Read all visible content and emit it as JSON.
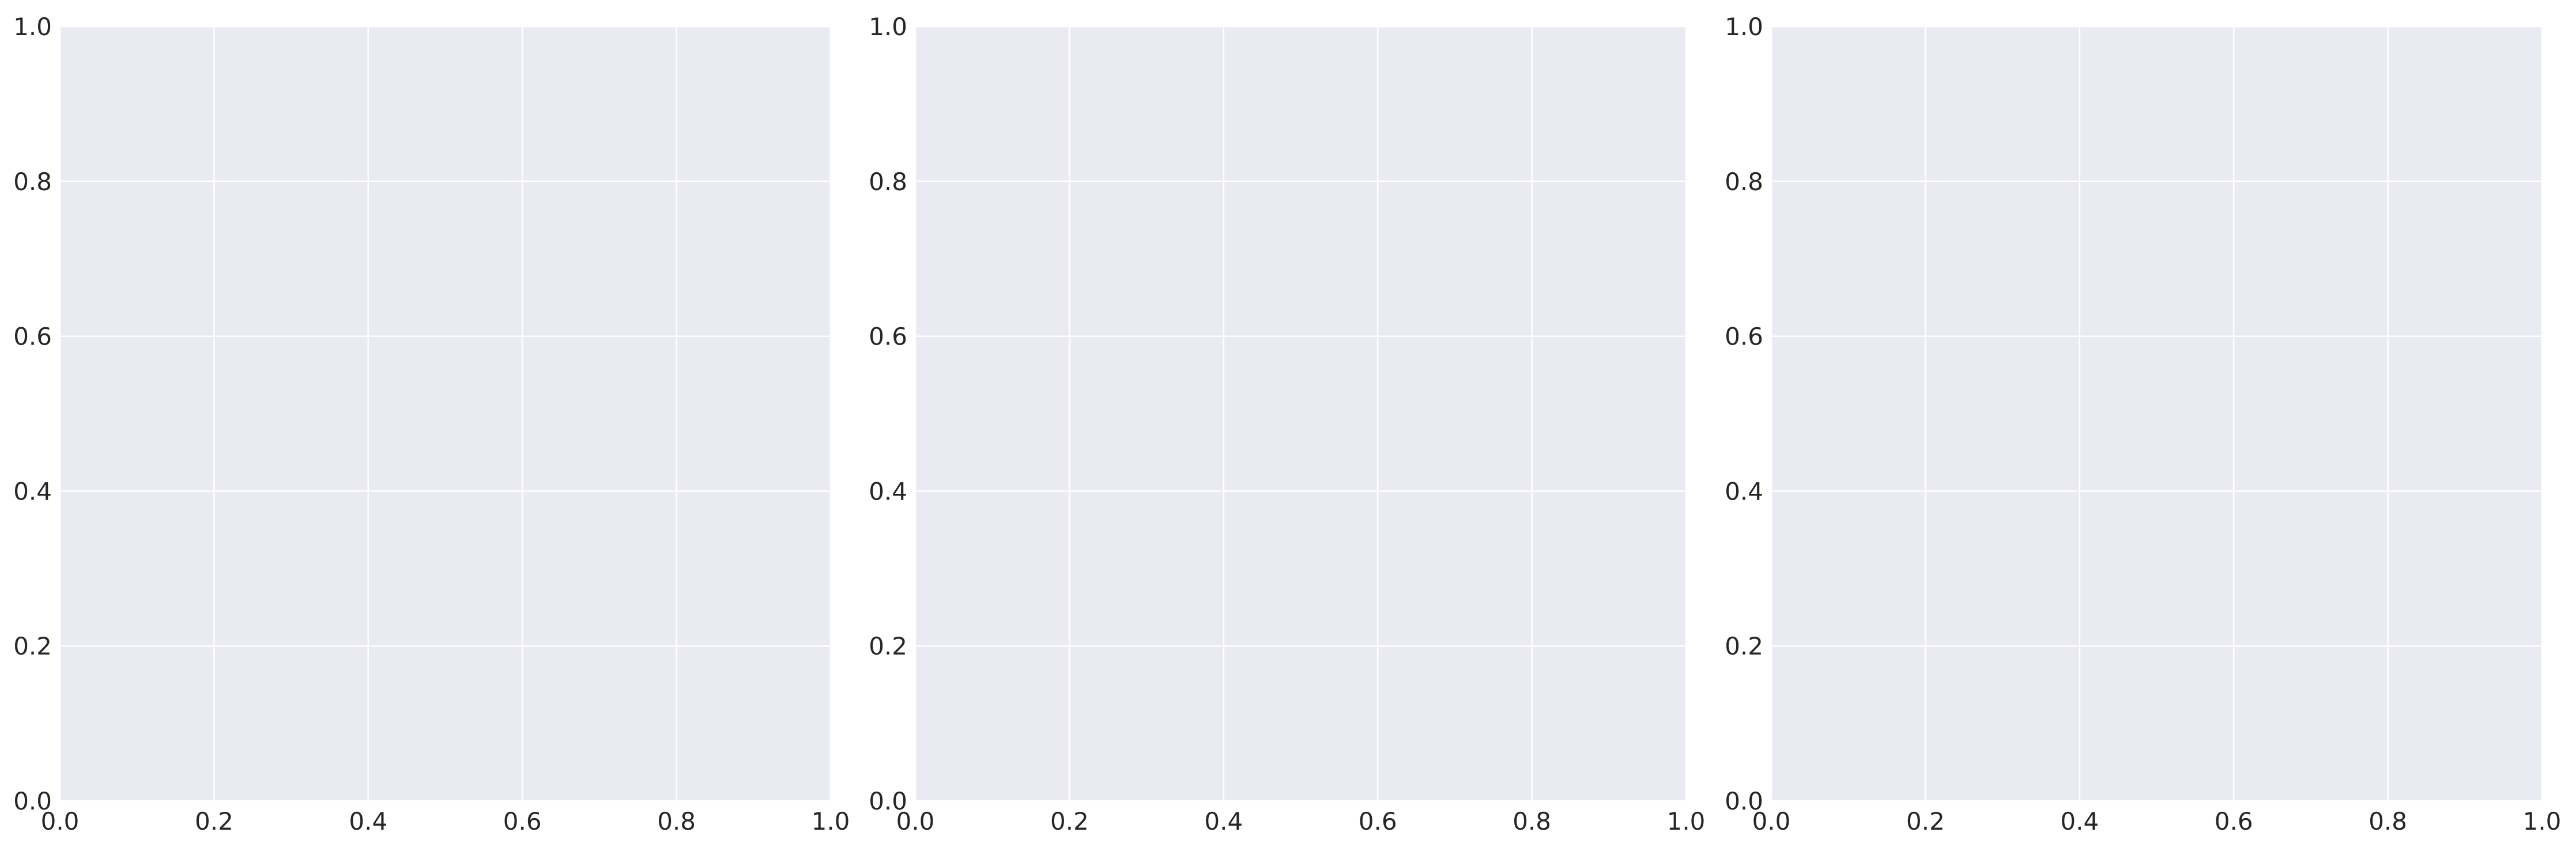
{
  "colors": {
    "figure_background": "#ffffff",
    "axes_background": "#eaeaf2",
    "grid": "#ffffff",
    "tick_label": "#262626"
  },
  "chart_data": [
    {
      "type": "scatter",
      "title": "",
      "xlabel": "",
      "ylabel": "",
      "xlim": [
        0.0,
        1.0
      ],
      "ylim": [
        0.0,
        1.0
      ],
      "x_ticks": [
        "0.0",
        "0.2",
        "0.4",
        "0.6",
        "0.8",
        "1.0"
      ],
      "y_ticks": [
        "0.0",
        "0.2",
        "0.4",
        "0.6",
        "0.8",
        "1.0"
      ],
      "grid": true,
      "series": []
    },
    {
      "type": "scatter",
      "title": "",
      "xlabel": "",
      "ylabel": "",
      "xlim": [
        0.0,
        1.0
      ],
      "ylim": [
        0.0,
        1.0
      ],
      "x_ticks": [
        "0.0",
        "0.2",
        "0.4",
        "0.6",
        "0.8",
        "1.0"
      ],
      "y_ticks": [
        "0.0",
        "0.2",
        "0.4",
        "0.6",
        "0.8",
        "1.0"
      ],
      "grid": true,
      "series": []
    },
    {
      "type": "scatter",
      "title": "",
      "xlabel": "",
      "ylabel": "",
      "xlim": [
        0.0,
        1.0
      ],
      "ylim": [
        0.0,
        1.0
      ],
      "x_ticks": [
        "0.0",
        "0.2",
        "0.4",
        "0.6",
        "0.8",
        "1.0"
      ],
      "y_ticks": [
        "0.0",
        "0.2",
        "0.4",
        "0.6",
        "0.8",
        "1.0"
      ],
      "grid": true,
      "series": []
    }
  ]
}
